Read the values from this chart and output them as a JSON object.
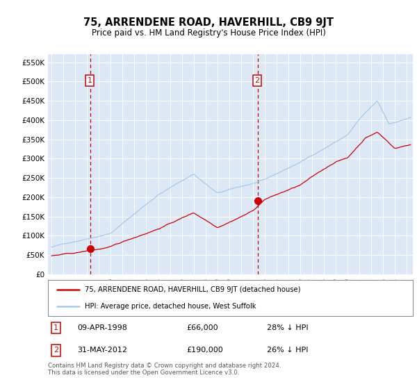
{
  "title": "75, ARRENDENE ROAD, HAVERHILL, CB9 9JT",
  "subtitle": "Price paid vs. HM Land Registry's House Price Index (HPI)",
  "hpi_label": "HPI: Average price, detached house, West Suffolk",
  "property_label": "75, ARRENDENE ROAD, HAVERHILL, CB9 9JT (detached house)",
  "sale1_label": "09-APR-1998",
  "sale1_price": "£66,000",
  "sale1_note": "28% ↓ HPI",
  "sale2_label": "31-MAY-2012",
  "sale2_price": "£190,000",
  "sale2_note": "26% ↓ HPI",
  "footnote": "Contains HM Land Registry data © Crown copyright and database right 2024.\nThis data is licensed under the Open Government Licence v3.0.",
  "hpi_color": "#a8c8e8",
  "price_color": "#cc0000",
  "marker_color": "#cc0000",
  "sale1_x": 1998.28,
  "sale1_y": 66000,
  "sale2_x": 2012.41,
  "sale2_y": 190000,
  "vline_color": "#cc0000",
  "ylim": [
    0,
    570000
  ],
  "yticks": [
    0,
    50000,
    100000,
    150000,
    200000,
    250000,
    300000,
    350000,
    400000,
    450000,
    500000,
    550000
  ],
  "ytick_labels": [
    "£0",
    "£50K",
    "£100K",
    "£150K",
    "£200K",
    "£250K",
    "£300K",
    "£350K",
    "£400K",
    "£450K",
    "£500K",
    "£550K"
  ],
  "bg_color": "#dce8f5",
  "plot_bg": "#dce8f5",
  "xlim_left": 1994.7,
  "xlim_right": 2025.5
}
